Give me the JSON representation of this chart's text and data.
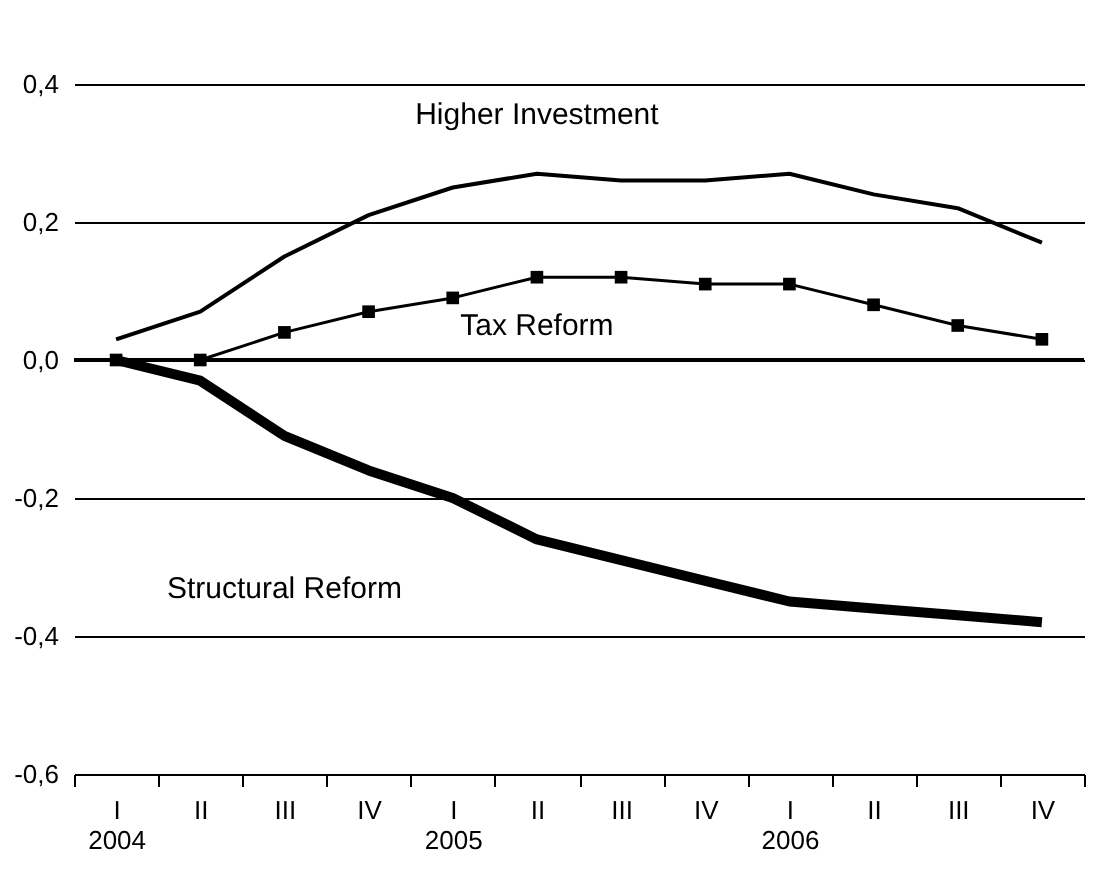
{
  "chart_data": {
    "type": "line",
    "categories": [
      "I\n2004",
      "II",
      "III",
      "IV",
      "I\n2005",
      "II",
      "III",
      "IV",
      "I\n2006",
      "II",
      "III",
      "IV"
    ],
    "series": [
      {
        "name": "Higher Investment",
        "color": "#000000",
        "values": [
          0.03,
          0.07,
          0.15,
          0.21,
          0.25,
          0.27,
          0.26,
          0.26,
          0.27,
          0.24,
          0.22,
          0.17
        ]
      },
      {
        "name": "Tax Reform",
        "color": "#000000",
        "marker": "square",
        "values": [
          0,
          0,
          0.04,
          0.07,
          0.09,
          0.12,
          0.12,
          0.11,
          0.11,
          0.08,
          0.05,
          0.03
        ]
      },
      {
        "name": "Structural Reform",
        "color": "#000000",
        "values": [
          0,
          -0.03,
          -0.11,
          -0.16,
          -0.2,
          -0.26,
          -0.29,
          -0.32,
          -0.35,
          -0.36,
          -0.37,
          -0.38
        ]
      }
    ],
    "ylim": [
      -0.6,
      0.4
    ],
    "yticks": [
      {
        "value": -0.6,
        "label": "-0,6"
      },
      {
        "value": -0.4,
        "label": "-0,4"
      },
      {
        "value": -0.2,
        "label": "-0,2"
      },
      {
        "value": 0,
        "label": "0,0"
      },
      {
        "value": 0.2,
        "label": "0,2"
      },
      {
        "value": 0.4,
        "label": "0,4"
      }
    ],
    "ref_lines": [
      {
        "axis": "y",
        "value": 0
      }
    ],
    "grid": "y"
  }
}
